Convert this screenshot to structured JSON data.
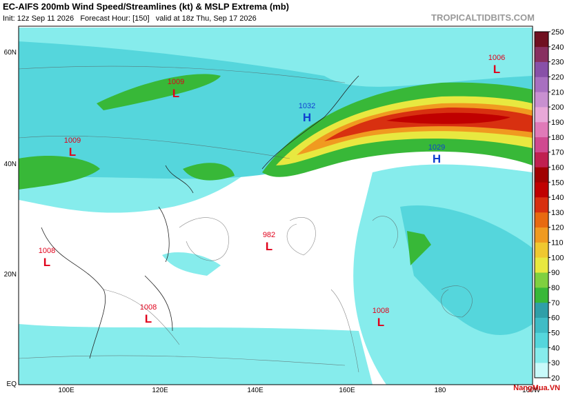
{
  "header": {
    "title": "EC-AIFS 200mb Wind Speed/Streamlines (kt) & MSLP Extrema (mb)",
    "subtitle": "Init: 12z Sep 11 2026   Forecast Hour: [150]   valid at 18z Thu, Sep 17 2026",
    "watermark": "TROPICALTIDBITS.COM"
  },
  "centers": [
    {
      "kind": "L",
      "value": "1009",
      "color": "#e0001a"
    },
    {
      "kind": "L",
      "value": "1009",
      "color": "#e0001a"
    },
    {
      "kind": "H",
      "value": "1032",
      "color": "#1040d0"
    },
    {
      "kind": "H",
      "value": "1029",
      "color": "#1040d0"
    },
    {
      "kind": "L",
      "value": "1006",
      "color": "#e0001a"
    },
    {
      "kind": "L",
      "value": "982",
      "color": "#e0001a"
    },
    {
      "kind": "L",
      "value": "1008",
      "color": "#e0001a"
    },
    {
      "kind": "L",
      "value": "1008",
      "color": "#e0001a"
    },
    {
      "kind": "L",
      "value": "1008",
      "color": "#e0001a"
    }
  ],
  "lat_labels": [
    "60N",
    "40N",
    "20N",
    "EQ"
  ],
  "lon_labels": [
    "100E",
    "120E",
    "140E",
    "160E",
    "180",
    "160W"
  ],
  "colorbar": {
    "ticks": [
      20,
      30,
      40,
      50,
      60,
      70,
      80,
      90,
      100,
      110,
      120,
      130,
      140,
      150,
      160,
      170,
      180,
      190,
      200,
      210,
      220,
      230,
      240,
      250
    ],
    "colors": [
      "#c8fafa",
      "#86ecec",
      "#55d6dc",
      "#3fbcc6",
      "#2f9fa8",
      "#38b838",
      "#7fd040",
      "#e8e840",
      "#f0c830",
      "#f09a20",
      "#e86a10",
      "#d83010",
      "#c00000",
      "#a00000",
      "#c02050",
      "#d04a90",
      "#e07ab8",
      "#e8a8d8",
      "#c890d0",
      "#a870c0",
      "#8850a8",
      "#883060",
      "#701020"
    ]
  },
  "branding": "NangMua.VN"
}
